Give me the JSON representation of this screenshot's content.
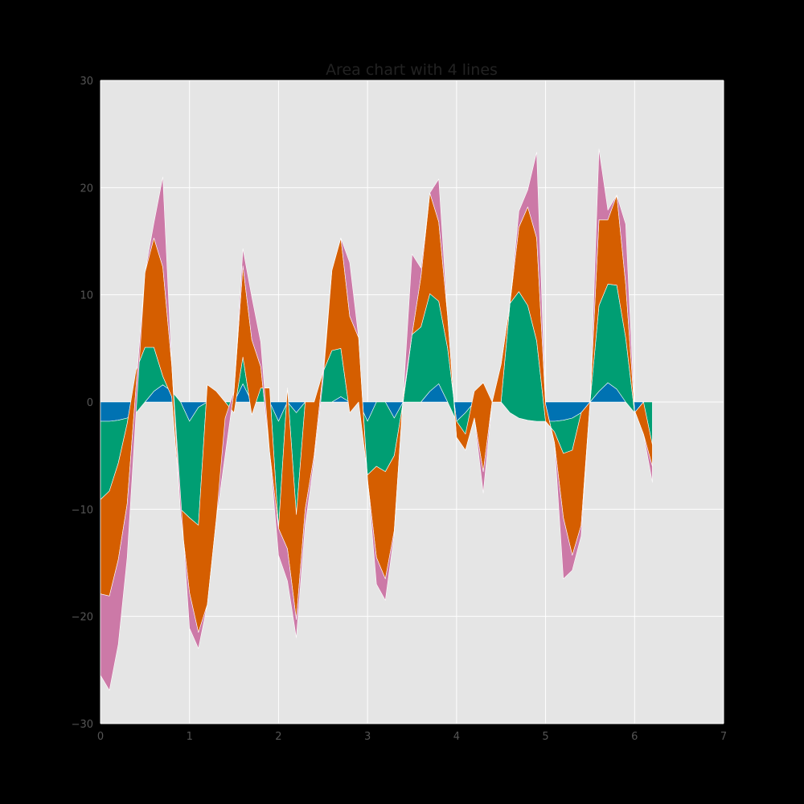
{
  "chart_data": {
    "type": "area",
    "stacked": true,
    "title": "Area chart with 4 lines",
    "xlabel": "",
    "ylabel": "",
    "xlim": [
      0,
      7
    ],
    "ylim": [
      -30,
      30
    ],
    "x_ticks": [
      0,
      1,
      2,
      3,
      4,
      5,
      6,
      7
    ],
    "y_ticks": [
      -30,
      -20,
      -10,
      0,
      10,
      20,
      30
    ],
    "x_tick_labels": [
      "0",
      "1",
      "2",
      "3",
      "4",
      "5",
      "6",
      "7"
    ],
    "y_tick_labels": [
      "−30",
      "−20",
      "−10",
      "0",
      "10",
      "20",
      "30"
    ],
    "grid": true,
    "legend": "none",
    "background": "#e5e5e5",
    "grid_color": "#ffffff",
    "x": [
      0.0,
      0.1,
      0.2,
      0.3,
      0.4,
      0.5,
      0.6,
      0.7,
      0.8,
      0.9,
      1.0,
      1.1,
      1.2,
      1.3,
      1.4,
      1.5,
      1.6,
      1.7,
      1.8,
      1.9,
      2.0,
      2.1,
      2.2,
      2.3,
      2.4,
      2.5,
      2.6,
      2.7,
      2.8,
      2.9,
      3.0,
      3.1,
      3.2,
      3.3,
      3.4,
      3.5,
      3.6,
      3.7,
      3.8,
      3.9,
      4.0,
      4.1,
      4.2,
      4.3,
      4.4,
      4.5,
      4.6,
      4.7,
      4.8,
      4.9,
      5.0,
      5.1,
      5.2,
      5.3,
      5.4,
      5.5,
      5.6,
      5.7,
      5.8,
      5.9,
      6.0,
      6.1,
      6.2
    ],
    "series": [
      {
        "color": "#0072b2",
        "values": [
          -1.8,
          -1.8,
          -1.7,
          -1.5,
          -1.0,
          0.0,
          1.0,
          1.6,
          1.0,
          0.0,
          -1.8,
          -0.5,
          0.0,
          0.0,
          0.0,
          0.0,
          1.7,
          0.0,
          0.0,
          0.0,
          -1.8,
          0.0,
          -1.0,
          0.0,
          0.0,
          0.0,
          0.0,
          0.5,
          0.0,
          0.0,
          -1.8,
          0.0,
          0.0,
          -1.5,
          0.0,
          0.0,
          0.0,
          1.0,
          1.7,
          0.0,
          -1.8,
          -1.0,
          0.0,
          0.0,
          0.0,
          0.0,
          -1.0,
          -1.5,
          -1.7,
          -1.8,
          -1.8,
          -1.8,
          -1.7,
          -1.5,
          -1.0,
          0.0,
          1.0,
          1.8,
          1.2,
          0.0,
          -1.0,
          0.0,
          0.0
        ]
      },
      {
        "color": "#009e73",
        "values": [
          -7.3,
          -6.5,
          -4.0,
          -0.5,
          4.0,
          5.1,
          4.1,
          0.8,
          -0.5,
          -10.0,
          -9.0,
          -11.0,
          1.6,
          1.0,
          0.0,
          -1.0,
          2.5,
          -1.2,
          1.3,
          1.3,
          -10.0,
          1.3,
          -9.5,
          0.0,
          0.0,
          2.8,
          4.8,
          4.5,
          -1.0,
          0.0,
          -5.0,
          -6.0,
          -6.5,
          -3.5,
          0.0,
          6.3,
          7.0,
          9.1,
          7.7,
          5.0,
          0.0,
          -2.0,
          1.0,
          1.8,
          0.0,
          0.0,
          10.2,
          11.8,
          10.7,
          7.5,
          0.0,
          -1.0,
          -3.1,
          -3.0,
          0.0,
          0.0,
          8.0,
          9.2,
          9.7,
          6.0,
          0.0,
          0.0,
          -4.0
        ]
      },
      {
        "color": "#d55e00",
        "values": [
          -8.8,
          -9.8,
          -9.0,
          -7.5,
          -1.5,
          7.0,
          10.2,
          10.2,
          3.0,
          -0.5,
          -7.0,
          -10.0,
          -20.5,
          -12.0,
          -5.0,
          2.0,
          8.5,
          7.0,
          2.0,
          -6.0,
          0.0,
          -15.0,
          -9.8,
          -10.0,
          -5.0,
          0.0,
          7.5,
          10.3,
          9.0,
          6.0,
          -0.5,
          -8.5,
          -10.0,
          -7.0,
          0.5,
          0.0,
          4.7,
          9.4,
          7.4,
          3.0,
          -1.5,
          -1.5,
          -2.5,
          -8.3,
          0.0,
          3.5,
          0.0,
          6.0,
          9.2,
          9.6,
          1.6,
          -1.0,
          -6.0,
          -9.8,
          -10.5,
          0.0,
          8.0,
          6.0,
          8.4,
          5.0,
          0.2,
          -3.0,
          -2.0
        ]
      },
      {
        "color": "#cc79a7",
        "values": [
          -7.6,
          -8.8,
          -7.9,
          -5.0,
          -2.5,
          0.0,
          1.4,
          8.4,
          0.0,
          1.7,
          -3.3,
          -1.5,
          0.0,
          0.0,
          3.5,
          0.0,
          1.6,
          4.0,
          2.3,
          0.0,
          -2.5,
          -3.0,
          -1.7,
          -1.5,
          -0.5,
          -0.8,
          0.0,
          0.0,
          5.0,
          0.0,
          0.2,
          -2.5,
          -2.0,
          -0.3,
          0.0,
          7.5,
          0.8,
          0.0,
          4.0,
          0.0,
          0.0,
          0.0,
          0.0,
          -2.0,
          0.0,
          0.0,
          0.0,
          1.5,
          1.6,
          8.0,
          0.0,
          0.0,
          -5.7,
          -1.4,
          -1.0,
          0.0,
          6.6,
          0.9,
          0.0,
          5.6,
          0.0,
          0.0,
          -1.5
        ]
      }
    ]
  }
}
